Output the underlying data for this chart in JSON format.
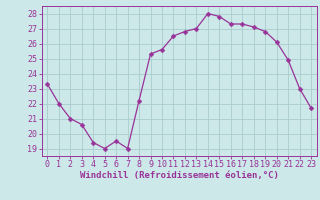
{
  "x": [
    0,
    1,
    2,
    3,
    4,
    5,
    6,
    7,
    8,
    9,
    10,
    11,
    12,
    13,
    14,
    15,
    16,
    17,
    18,
    19,
    20,
    21,
    22,
    23
  ],
  "y": [
    23.3,
    22.0,
    21.0,
    20.6,
    19.4,
    19.0,
    19.5,
    19.0,
    22.2,
    25.3,
    25.6,
    26.5,
    26.8,
    27.0,
    28.0,
    27.8,
    27.3,
    27.3,
    27.1,
    26.8,
    26.1,
    24.9,
    23.0,
    21.7
  ],
  "line_color": "#993399",
  "marker": "D",
  "marker_size": 2.5,
  "bg_color": "#cce8e8",
  "grid_color": "#aacccc",
  "xlabel": "Windchill (Refroidissement éolien,°C)",
  "xlabel_fontsize": 6.5,
  "tick_fontsize": 6.0,
  "ylim": [
    18.5,
    28.5
  ],
  "xlim": [
    -0.5,
    23.5
  ],
  "yticks": [
    19,
    20,
    21,
    22,
    23,
    24,
    25,
    26,
    27,
    28
  ],
  "xticks": [
    0,
    1,
    2,
    3,
    4,
    5,
    6,
    7,
    8,
    9,
    10,
    11,
    12,
    13,
    14,
    15,
    16,
    17,
    18,
    19,
    20,
    21,
    22,
    23
  ]
}
